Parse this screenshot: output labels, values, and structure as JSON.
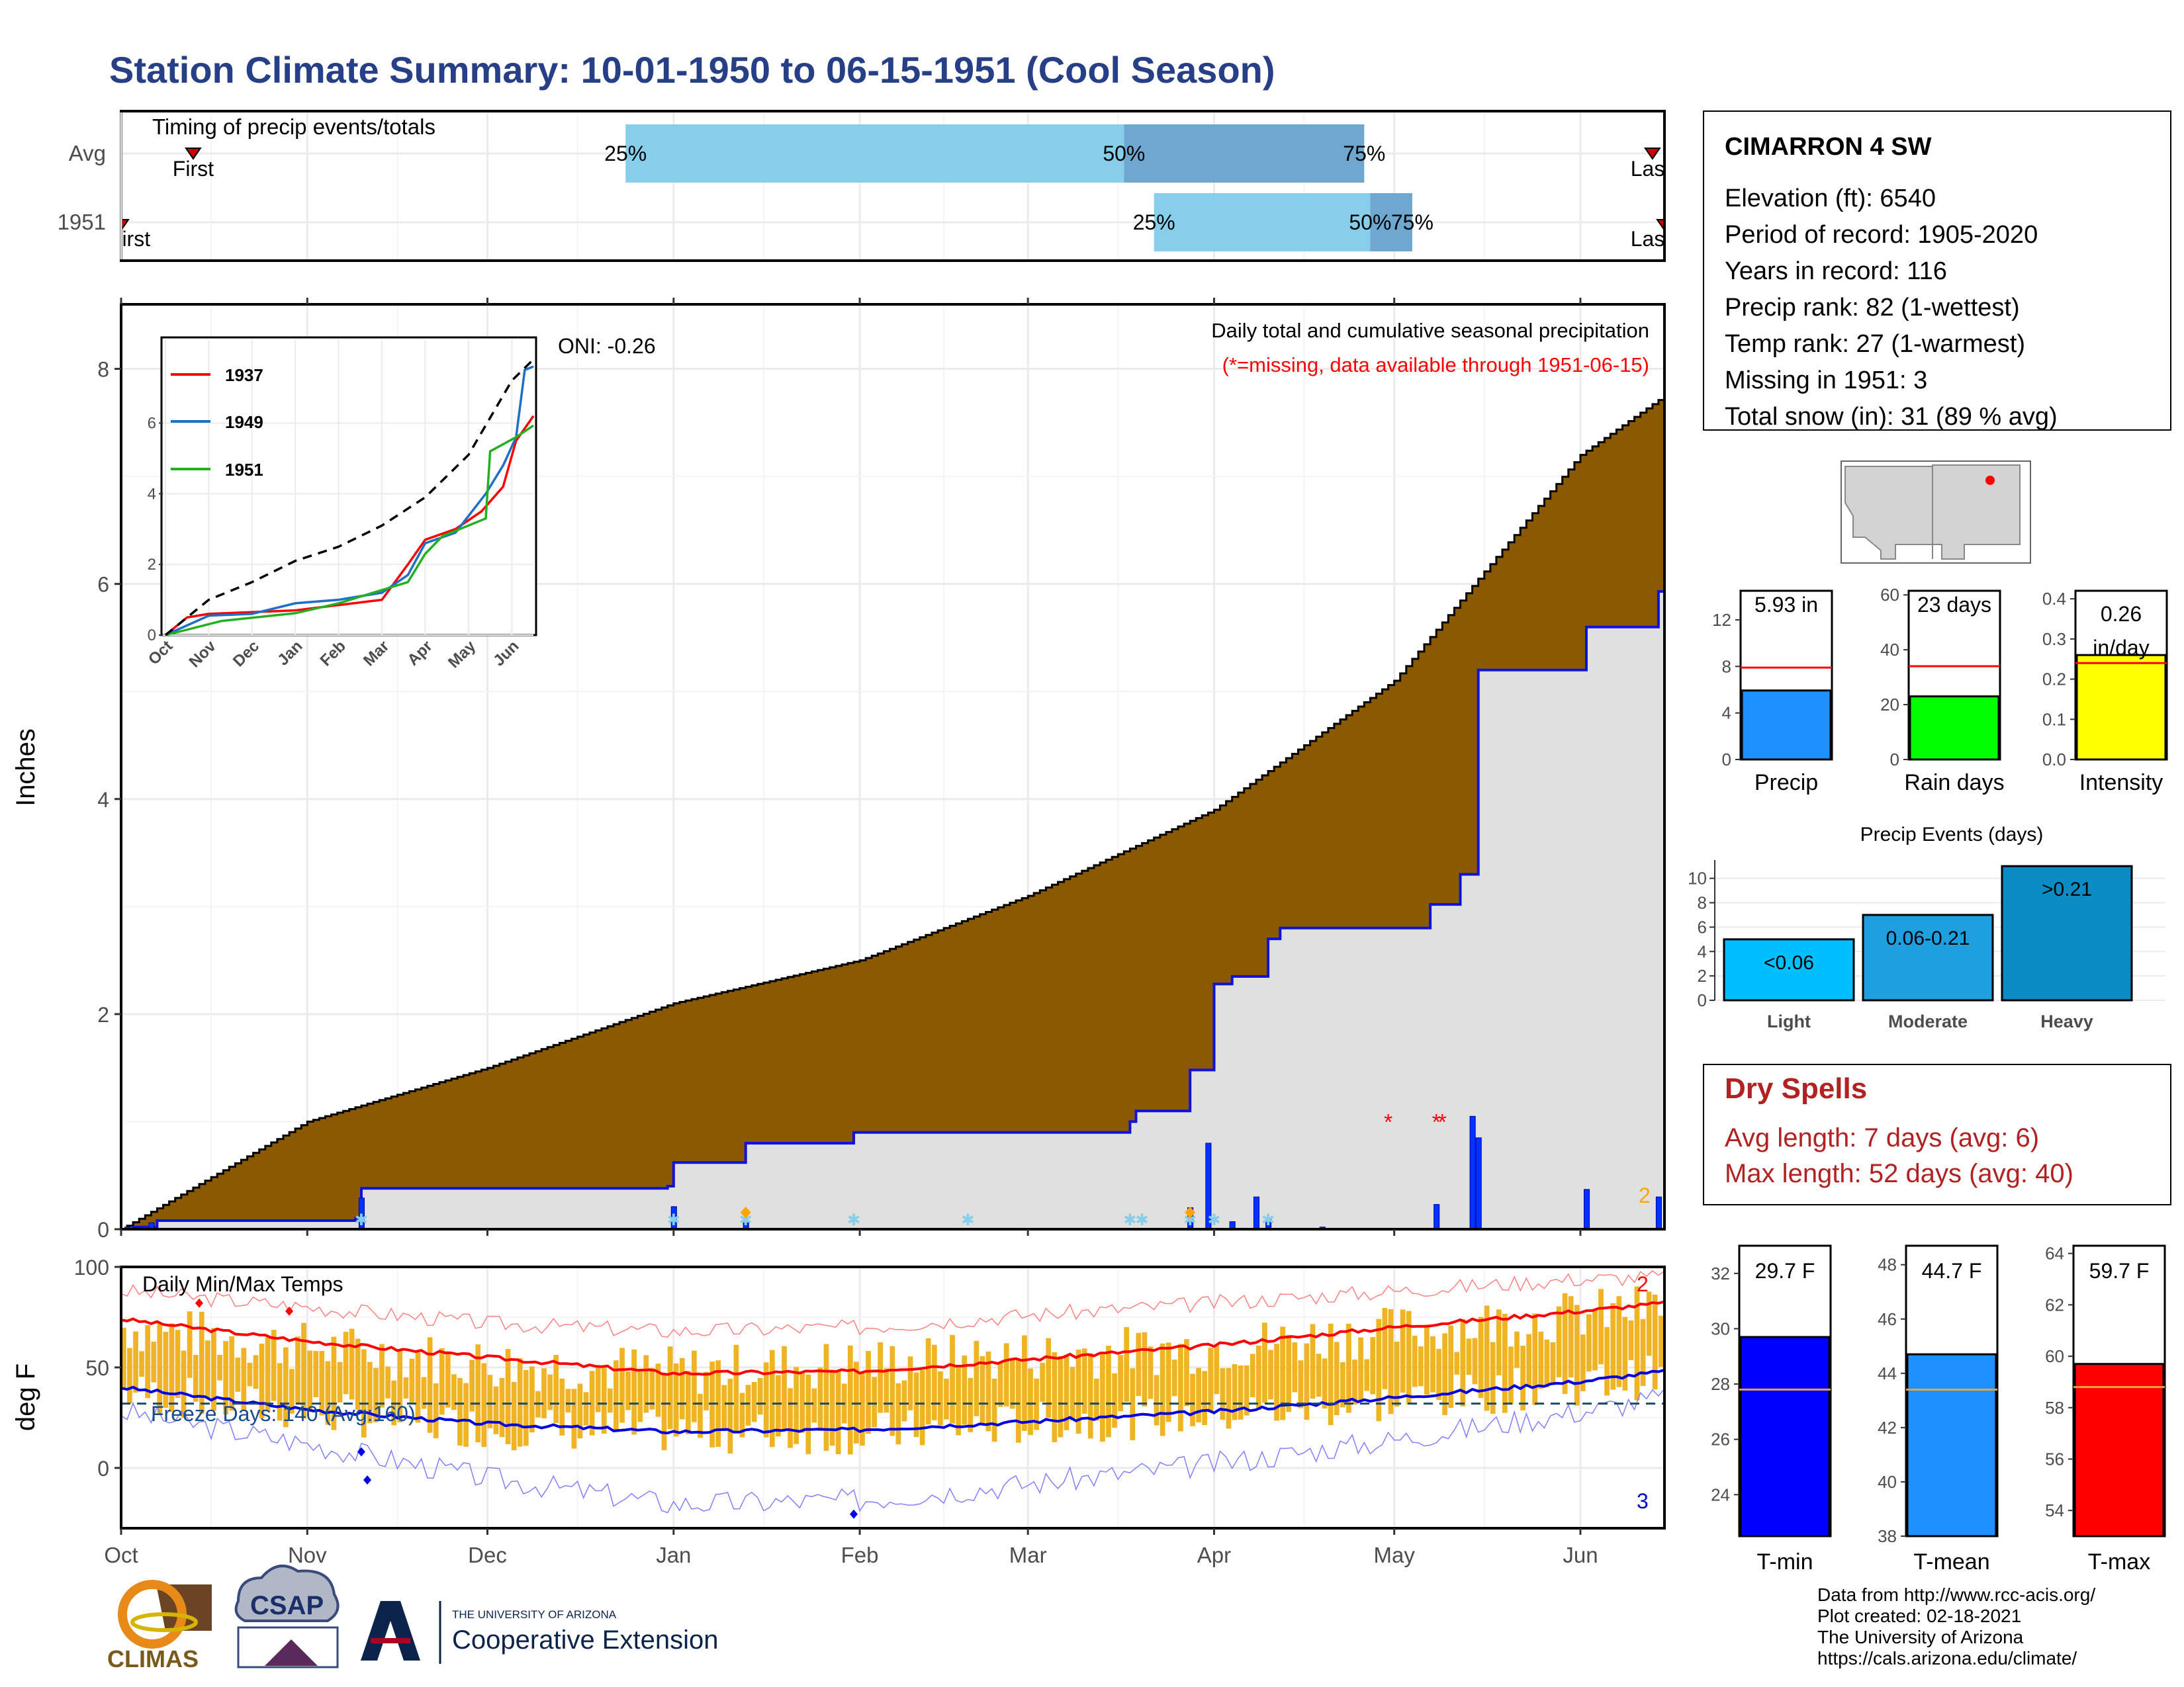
{
  "title": "Station Climate Summary: 10-01-1950 to 06-15-1951 (Cool Season)",
  "timing": {
    "title": "Timing of precip events/totals",
    "rows": [
      {
        "label": "Avg",
        "first_label": "First",
        "last_label": "Last",
        "q25_label": "25%",
        "q50_label": "50%",
        "q75_label": "75%",
        "first_date": "1950-10-13",
        "last_date": "1951-06-13",
        "q25_date": "1950-12-24",
        "q50_date": "1951-03-17",
        "q75_date": "1951-04-26"
      },
      {
        "label": "1951",
        "first_label": "First",
        "last_label": "Last",
        "q25_label": "25%",
        "q50_label": "50%",
        "q75_label": "75%",
        "first_date": "1950-10-01",
        "last_date": "1951-06-15",
        "q25_date": "1951-03-22",
        "q50_date": "1951-04-27",
        "q75_date": "1951-05-04"
      }
    ]
  },
  "main_chart": {
    "ylabel": "Inches",
    "ylim": [
      0,
      8.6
    ],
    "yticks": [
      0,
      2,
      4,
      6,
      8
    ],
    "legend_title": "Daily total and cumulative seasonal precipitation",
    "legend_subtitle": "(*=missing, data available through 1951-06-15)",
    "oni": "ONI: -0.26",
    "snow_count": "2"
  },
  "inset": {
    "series_names": [
      "1937",
      "1949",
      "1951"
    ],
    "yticks": [
      "0",
      "2",
      "4",
      "6"
    ],
    "xticks": [
      "Oct",
      "Nov",
      "Dec",
      "Jan",
      "Feb",
      "Mar",
      "Apr",
      "May",
      "Jun"
    ]
  },
  "temp_chart": {
    "ylabel": "deg F",
    "title": "Daily Min/Max Temps",
    "freeze_label": "Freeze Days: 140 (Avg:160)",
    "yticks": [
      "100",
      "50",
      "0"
    ],
    "hot_count": "2",
    "cold_count": "3"
  },
  "x_months": [
    "Oct",
    "Nov",
    "Dec",
    "Jan",
    "Feb",
    "Mar",
    "Apr",
    "May",
    "Jun"
  ],
  "station": {
    "name": "CIMARRON 4 SW",
    "lines": [
      "Elevation (ft): 6540",
      "Period of record: 1905-2020",
      "Years in record: 116",
      "Precip rank: 82 (1-wettest)",
      "Temp rank: 27 (1-warmest)",
      "Missing in 1951: 3",
      "Total snow (in): 31 (89 % avg)"
    ]
  },
  "mini_precip": [
    {
      "label": "Precip",
      "value_text": "5.93 in",
      "value": 5.93,
      "avg": 7.9,
      "yticks": [
        "12",
        "8",
        "4",
        "0"
      ],
      "ymax": 14.5,
      "color": "#1e90ff"
    },
    {
      "label": "Rain days",
      "value_text": "23 days",
      "value": 23,
      "avg": 34,
      "yticks": [
        "60",
        "40",
        "20",
        "0"
      ],
      "ymax": 61.5,
      "color": "#00ff00"
    },
    {
      "label": "Intensity",
      "value_text": "0.26 in/day",
      "value": 0.26,
      "avg": 0.24,
      "yticks": [
        "0.4",
        "0.3",
        "0.2",
        "0.1",
        "0.0"
      ],
      "ymax": 0.42,
      "color": "#ffff00"
    }
  ],
  "events": {
    "title": "Precip Events (days)",
    "yticks": [
      "10",
      "8",
      "6",
      "4",
      "2",
      "0"
    ],
    "bars": [
      {
        "label": "Light",
        "range_label": "<0.06",
        "value": 5
      },
      {
        "label": "Moderate",
        "range_label": "0.06-0.21",
        "value": 7
      },
      {
        "label": "Heavy",
        "range_label": ">0.21",
        "value": 11
      }
    ]
  },
  "dry_spells": {
    "title": "Dry Spells",
    "avg_text": "Avg length: 7 days (avg: 6)",
    "max_text": "Max length: 52 days (avg: 40)"
  },
  "mini_temp": [
    {
      "label": "T-min",
      "value_text": "29.7 F",
      "value": 29.7,
      "avg": 27.8,
      "ymin": 22.5,
      "ymax": 33,
      "yticks": [
        "32",
        "30",
        "28",
        "26",
        "24"
      ],
      "color": "#0000ff"
    },
    {
      "label": "T-mean",
      "value_text": "44.7 F",
      "value": 44.7,
      "avg": 43.4,
      "ymin": 38,
      "ymax": 48.7,
      "yticks": [
        "48",
        "46",
        "44",
        "42",
        "40",
        "38"
      ],
      "color": "#1e90ff"
    },
    {
      "label": "T-max",
      "value_text": "59.7 F",
      "value": 59.7,
      "avg": 58.8,
      "ymin": 53,
      "ymax": 64.3,
      "yticks": [
        "64",
        "62",
        "60",
        "58",
        "56",
        "54"
      ],
      "color": "#ff0000"
    }
  ],
  "footer": {
    "lines": [
      "Data from http://www.rcc-acis.org/",
      "Plot created: 02-18-2021",
      "The University of Arizona",
      "https://cals.arizona.edu/climate/"
    ]
  },
  "logos": {
    "climas": "CLIMAS",
    "csap": "CSAP",
    "ua_small": "THE UNIVERSITY OF ARIZONA",
    "ua_big": "Cooperative Extension"
  },
  "chart_data": {
    "type": "area",
    "title": "Daily total and cumulative seasonal precipitation",
    "ylabel": "Inches",
    "ylim": [
      0,
      8.6
    ],
    "x_range": [
      "1950-10-01",
      "1951-06-15"
    ],
    "cumulative_avg": [
      {
        "date": "1950-10-01",
        "v": 0.0
      },
      {
        "date": "1950-11-01",
        "v": 1.0
      },
      {
        "date": "1950-12-01",
        "v": 1.5
      },
      {
        "date": "1951-01-01",
        "v": 2.1
      },
      {
        "date": "1951-02-01",
        "v": 2.5
      },
      {
        "date": "1951-03-01",
        "v": 3.1
      },
      {
        "date": "1951-04-01",
        "v": 3.9
      },
      {
        "date": "1951-05-01",
        "v": 5.1
      },
      {
        "date": "1951-06-01",
        "v": 7.2
      },
      {
        "date": "1951-06-15",
        "v": 7.75
      }
    ],
    "cumulative_1951": [
      {
        "date": "1950-10-01",
        "v": 0.0
      },
      {
        "date": "1950-10-03",
        "v": 0.02
      },
      {
        "date": "1950-10-07",
        "v": 0.08
      },
      {
        "date": "1950-11-09",
        "v": 0.1
      },
      {
        "date": "1950-11-10",
        "v": 0.38
      },
      {
        "date": "1950-12-31",
        "v": 0.4
      },
      {
        "date": "1951-01-01",
        "v": 0.62
      },
      {
        "date": "1951-01-13",
        "v": 0.8
      },
      {
        "date": "1951-01-31",
        "v": 0.9
      },
      {
        "date": "1951-03-18",
        "v": 1.0
      },
      {
        "date": "1951-03-19",
        "v": 1.1
      },
      {
        "date": "1951-03-28",
        "v": 1.48
      },
      {
        "date": "1951-04-01",
        "v": 2.28
      },
      {
        "date": "1951-04-04",
        "v": 2.35
      },
      {
        "date": "1951-04-10",
        "v": 2.7
      },
      {
        "date": "1951-04-12",
        "v": 2.8
      },
      {
        "date": "1951-05-07",
        "v": 3.02
      },
      {
        "date": "1951-05-12",
        "v": 3.3
      },
      {
        "date": "1951-05-15",
        "v": 5.2
      },
      {
        "date": "1951-06-02",
        "v": 5.6
      },
      {
        "date": "1951-06-14",
        "v": 5.93
      }
    ],
    "daily_1951": [
      {
        "date": "1950-10-02",
        "v": 0.02
      },
      {
        "date": "1950-10-06",
        "v": 0.06
      },
      {
        "date": "1950-11-10",
        "v": 0.29
      },
      {
        "date": "1951-01-01",
        "v": 0.21
      },
      {
        "date": "1951-01-13",
        "v": 0.06
      },
      {
        "date": "1951-03-28",
        "v": 0.2
      },
      {
        "date": "1951-03-31",
        "v": 0.8
      },
      {
        "date": "1951-04-04",
        "v": 0.07
      },
      {
        "date": "1951-04-08",
        "v": 0.3
      },
      {
        "date": "1951-04-10",
        "v": 0.1
      },
      {
        "date": "1951-04-19",
        "v": 0.02
      },
      {
        "date": "1951-05-08",
        "v": 0.23
      },
      {
        "date": "1951-05-14",
        "v": 1.05
      },
      {
        "date": "1951-05-15",
        "v": 0.85
      },
      {
        "date": "1951-06-02",
        "v": 0.37
      },
      {
        "date": "1951-06-14",
        "v": 0.3
      }
    ],
    "missing_dates": [
      "1951-04-30",
      "1951-05-08",
      "1951-05-09"
    ],
    "inset_series": [
      {
        "name": "1937",
        "color": "#ff0000",
        "points": [
          {
            "m": 0,
            "v": 0
          },
          {
            "m": 0.5,
            "v": 0.5
          },
          {
            "m": 1,
            "v": 0.6
          },
          {
            "m": 2,
            "v": 0.65
          },
          {
            "m": 3,
            "v": 0.7
          },
          {
            "m": 4,
            "v": 0.85
          },
          {
            "m": 5,
            "v": 1.0
          },
          {
            "m": 5.6,
            "v": 2.0
          },
          {
            "m": 6,
            "v": 2.7
          },
          {
            "m": 6.7,
            "v": 3.0
          },
          {
            "m": 7.3,
            "v": 3.5
          },
          {
            "m": 7.8,
            "v": 4.2
          },
          {
            "m": 8.1,
            "v": 5.5
          },
          {
            "m": 8.5,
            "v": 6.2
          }
        ]
      },
      {
        "name": "1949",
        "color": "#1e6fc8",
        "points": [
          {
            "m": 0,
            "v": 0
          },
          {
            "m": 1,
            "v": 0.55
          },
          {
            "m": 2,
            "v": 0.6
          },
          {
            "m": 3,
            "v": 0.9
          },
          {
            "m": 4,
            "v": 1.0
          },
          {
            "m": 5,
            "v": 1.2
          },
          {
            "m": 5.6,
            "v": 1.7
          },
          {
            "m": 6,
            "v": 2.6
          },
          {
            "m": 6.7,
            "v": 2.9
          },
          {
            "m": 7.4,
            "v": 4.0
          },
          {
            "m": 7.8,
            "v": 4.8
          },
          {
            "m": 8.1,
            "v": 5.6
          },
          {
            "m": 8.3,
            "v": 7.5
          },
          {
            "m": 8.5,
            "v": 7.6
          }
        ]
      },
      {
        "name": "1951",
        "color": "#22b022",
        "points": [
          {
            "m": 0,
            "v": 0
          },
          {
            "m": 1.3,
            "v": 0.4
          },
          {
            "m": 3,
            "v": 0.62
          },
          {
            "m": 4,
            "v": 0.9
          },
          {
            "m": 5.6,
            "v": 1.5
          },
          {
            "m": 6,
            "v": 2.3
          },
          {
            "m": 6.4,
            "v": 2.8
          },
          {
            "m": 7.4,
            "v": 3.3
          },
          {
            "m": 7.5,
            "v": 5.2
          },
          {
            "m": 8.1,
            "v": 5.6
          },
          {
            "m": 8.5,
            "v": 5.93
          }
        ]
      },
      {
        "name": "avg",
        "color": "#000000",
        "dashed": true,
        "points": [
          {
            "m": 0,
            "v": 0
          },
          {
            "m": 1,
            "v": 1.0
          },
          {
            "m": 2,
            "v": 1.5
          },
          {
            "m": 3,
            "v": 2.1
          },
          {
            "m": 4,
            "v": 2.5
          },
          {
            "m": 5,
            "v": 3.1
          },
          {
            "m": 6,
            "v": 3.9
          },
          {
            "m": 7,
            "v": 5.1
          },
          {
            "m": 8,
            "v": 7.2
          },
          {
            "m": 8.5,
            "v": 7.8
          }
        ]
      }
    ],
    "temperature": {
      "ylim": [
        -30,
        100
      ],
      "freeze_line": 32,
      "avg_max": [
        {
          "date": "1950-10-01",
          "v": 74
        },
        {
          "date": "1950-11-01",
          "v": 63
        },
        {
          "date": "1950-12-01",
          "v": 55
        },
        {
          "date": "1951-01-01",
          "v": 47
        },
        {
          "date": "1951-02-01",
          "v": 48
        },
        {
          "date": "1951-03-01",
          "v": 54
        },
        {
          "date": "1951-04-01",
          "v": 61
        },
        {
          "date": "1951-05-01",
          "v": 70
        },
        {
          "date": "1951-06-01",
          "v": 78
        },
        {
          "date": "1951-06-15",
          "v": 82
        }
      ],
      "avg_min": [
        {
          "date": "1950-10-01",
          "v": 40
        },
        {
          "date": "1950-11-01",
          "v": 29
        },
        {
          "date": "1950-12-01",
          "v": 22
        },
        {
          "date": "1951-01-01",
          "v": 18
        },
        {
          "date": "1951-02-01",
          "v": 19
        },
        {
          "date": "1951-03-01",
          "v": 23
        },
        {
          "date": "1951-04-01",
          "v": 28
        },
        {
          "date": "1951-05-01",
          "v": 35
        },
        {
          "date": "1951-06-01",
          "v": 43
        },
        {
          "date": "1951-06-15",
          "v": 48
        }
      ],
      "record_max": [
        {
          "date": "1950-10-01",
          "v": 88
        },
        {
          "date": "1950-11-01",
          "v": 80
        },
        {
          "date": "1950-12-01",
          "v": 72
        },
        {
          "date": "1951-01-01",
          "v": 68
        },
        {
          "date": "1951-02-01",
          "v": 70
        },
        {
          "date": "1951-03-01",
          "v": 76
        },
        {
          "date": "1951-04-01",
          "v": 82
        },
        {
          "date": "1951-05-01",
          "v": 88
        },
        {
          "date": "1951-06-01",
          "v": 94
        },
        {
          "date": "1951-06-15",
          "v": 95
        }
      ],
      "record_min": [
        {
          "date": "1950-10-01",
          "v": 28
        },
        {
          "date": "1950-11-01",
          "v": 12
        },
        {
          "date": "1950-12-01",
          "v": -5
        },
        {
          "date": "1951-01-01",
          "v": -18
        },
        {
          "date": "1951-02-01",
          "v": -16
        },
        {
          "date": "1951-03-01",
          "v": -8
        },
        {
          "date": "1951-04-01",
          "v": 2
        },
        {
          "date": "1951-05-01",
          "v": 14
        },
        {
          "date": "1951-06-01",
          "v": 28
        },
        {
          "date": "1951-06-15",
          "v": 35
        }
      ],
      "daily_max_env": [
        {
          "date": "1950-10-01",
          "v": 70
        },
        {
          "date": "1950-11-01",
          "v": 60
        },
        {
          "date": "1950-12-01",
          "v": 52
        },
        {
          "date": "1951-01-01",
          "v": 48
        },
        {
          "date": "1951-02-01",
          "v": 52
        },
        {
          "date": "1951-03-01",
          "v": 56
        },
        {
          "date": "1951-04-01",
          "v": 60
        },
        {
          "date": "1951-05-01",
          "v": 68
        },
        {
          "date": "1951-06-01",
          "v": 76
        },
        {
          "date": "1951-06-15",
          "v": 80
        }
      ],
      "daily_min_env": [
        {
          "date": "1950-10-01",
          "v": 38
        },
        {
          "date": "1950-11-01",
          "v": 28
        },
        {
          "date": "1950-12-01",
          "v": 20
        },
        {
          "date": "1951-01-01",
          "v": 18
        },
        {
          "date": "1951-02-01",
          "v": 17
        },
        {
          "date": "1951-03-01",
          "v": 22
        },
        {
          "date": "1951-04-01",
          "v": 27
        },
        {
          "date": "1951-05-01",
          "v": 33
        },
        {
          "date": "1951-06-01",
          "v": 42
        },
        {
          "date": "1951-06-15",
          "v": 46
        }
      ]
    }
  }
}
